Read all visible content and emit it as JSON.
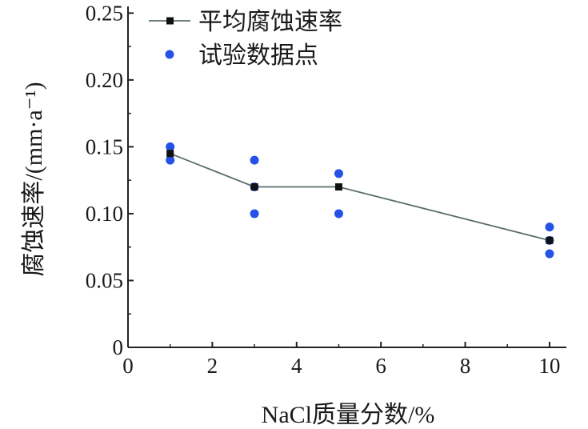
{
  "chart_data": {
    "type": "scatter",
    "xlabel": "NaCl质量分数/%",
    "ylabel": "腐蚀速率/(mm·a⁻¹)",
    "xlim": [
      0,
      10.4
    ],
    "ylim": [
      0,
      0.255
    ],
    "xticks": [
      "0",
      "2",
      "4",
      "6",
      "8",
      "10"
    ],
    "yticks": [
      "0",
      "0.05",
      "0.10",
      "0.15",
      "0.20",
      "0.25"
    ],
    "grid": false,
    "legend_position": "top-left",
    "series": [
      {
        "name": "平均腐蚀速率",
        "kind": "line-marker",
        "marker": "square",
        "color": "#111111",
        "line_color": "#5b6e6e",
        "x": [
          1,
          3,
          5,
          10
        ],
        "y": [
          0.145,
          0.12,
          0.12,
          0.08
        ]
      },
      {
        "name": "试验数据点",
        "kind": "scatter",
        "marker": "circle",
        "color": "#2452e6",
        "x": [
          1,
          1,
          3,
          3,
          3,
          5,
          5,
          10,
          10,
          10
        ],
        "y": [
          0.15,
          0.14,
          0.14,
          0.12,
          0.1,
          0.13,
          0.1,
          0.09,
          0.08,
          0.07
        ]
      }
    ]
  }
}
